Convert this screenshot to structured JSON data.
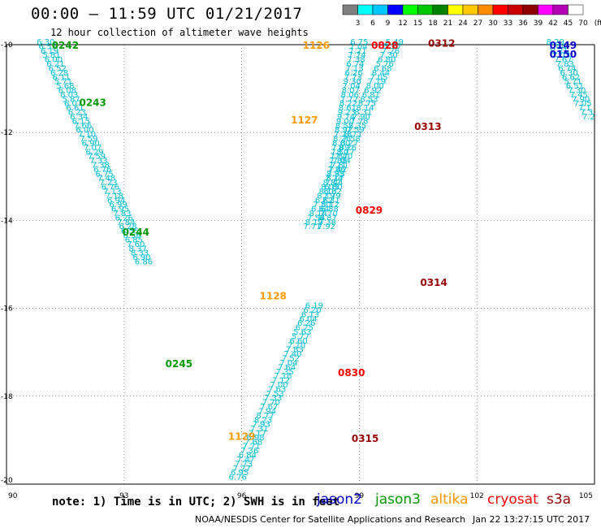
{
  "header": {
    "title": "00:00 – 11:59 UTC 01/21/2017",
    "subtitle": "12 hour collection of altimeter wave heights"
  },
  "colorbar": {
    "ticks": [
      "3",
      "6",
      "9",
      "12",
      "15",
      "18",
      "21",
      "24",
      "27",
      "30",
      "33",
      "36",
      "39",
      "42",
      "45",
      "70",
      "(ft)"
    ],
    "colors": [
      "#7f7f7f",
      "#00ffff",
      "#00c8ff",
      "#0000ff",
      "#00ff00",
      "#00c800",
      "#008200",
      "#ffff00",
      "#ffc800",
      "#ff8c00",
      "#ff0000",
      "#c80000",
      "#8c0000",
      "#ff00ff",
      "#b400b4",
      "#ffffff"
    ]
  },
  "footer": {
    "note": "note: 1) Time is in UTC; 2) SWH is in feet",
    "credit": "NOAA/NESDIS Center for Satellite Applications and Research",
    "timestamp": "Jan 22 13:27:15 UTC 2017"
  },
  "legend": [
    {
      "name": "jason2",
      "color": "#0000cc"
    },
    {
      "name": "jason3",
      "color": "#009900"
    },
    {
      "name": "altika",
      "color": "#ff9900"
    },
    {
      "name": "cryosat",
      "color": "#ff0000"
    },
    {
      "name": "s3a",
      "color": "#990000"
    }
  ],
  "chart_data": {
    "type": "scatter",
    "xlim": [
      90,
      105
    ],
    "ylim": [
      -20,
      -10
    ],
    "xticks": [
      "90",
      "93",
      "96",
      "99",
      "102",
      "105"
    ],
    "yticks": [
      "-10",
      "-12",
      "-14",
      "-16",
      "-18",
      "-20"
    ],
    "grid": true,
    "point_color": "#00bcd4",
    "track_labels": [
      {
        "text": "0242",
        "x": 91.5,
        "y": -10.0,
        "sat": "jason3"
      },
      {
        "text": "0243",
        "x": 92.2,
        "y": -11.3,
        "sat": "jason3"
      },
      {
        "text": "0244",
        "x": 93.3,
        "y": -14.25,
        "sat": "jason3"
      },
      {
        "text": "0245",
        "x": 94.4,
        "y": -17.25,
        "sat": "jason3"
      },
      {
        "text": "1126",
        "x": 97.9,
        "y": -10.0,
        "sat": "altika"
      },
      {
        "text": "1127",
        "x": 97.6,
        "y": -11.7,
        "sat": "altika"
      },
      {
        "text": "1128",
        "x": 96.8,
        "y": -15.7,
        "sat": "altika"
      },
      {
        "text": "1129",
        "x": 96.0,
        "y": -18.9,
        "sat": "altika"
      },
      {
        "text": "0828",
        "x": 99.65,
        "y": -10.0,
        "sat": "cryosat"
      },
      {
        "text": "0829",
        "x": 99.25,
        "y": -13.75,
        "sat": "cryosat"
      },
      {
        "text": "0830",
        "x": 98.8,
        "y": -17.45,
        "sat": "cryosat"
      },
      {
        "text": "0312",
        "x": 101.1,
        "y": -9.95,
        "sat": "s3a"
      },
      {
        "text": "0313",
        "x": 100.75,
        "y": -11.85,
        "sat": "s3a"
      },
      {
        "text": "0314",
        "x": 100.9,
        "y": -15.4,
        "sat": "s3a"
      },
      {
        "text": "0315",
        "x": 99.15,
        "y": -18.95,
        "sat": "s3a"
      },
      {
        "text": "0149",
        "x": 104.2,
        "y": -10.0,
        "sat": "jason2"
      },
      {
        "text": "0150",
        "x": 104.2,
        "y": -10.2,
        "sat": "jason2"
      }
    ],
    "tracks": [
      {
        "name": "jason3 desc",
        "points": [
          [
            91.0,
            -10.0,
            "6.30"
          ],
          [
            91.05,
            -10.1,
            "6.55"
          ],
          [
            91.1,
            -10.2,
            "6.19"
          ],
          [
            91.15,
            -10.3,
            "5.81"
          ],
          [
            91.2,
            -10.4,
            "6.00"
          ],
          [
            91.25,
            -10.5,
            "6.21"
          ],
          [
            91.3,
            -10.6,
            "6.52"
          ],
          [
            91.35,
            -10.7,
            "6.28"
          ],
          [
            91.4,
            -10.8,
            "6.11"
          ],
          [
            91.45,
            -10.9,
            "5.71"
          ],
          [
            91.5,
            -11.0,
            "5.68"
          ],
          [
            91.55,
            -11.1,
            "6.08"
          ],
          [
            91.6,
            -11.2,
            "6.03"
          ],
          [
            91.65,
            -11.3,
            "5.87"
          ],
          [
            91.7,
            -11.4,
            "6.07"
          ],
          [
            91.75,
            -11.5,
            "6.61"
          ],
          [
            91.8,
            -11.6,
            "6.23"
          ],
          [
            91.85,
            -11.7,
            "6.34"
          ],
          [
            91.9,
            -11.8,
            "6.15"
          ],
          [
            91.95,
            -11.9,
            "7.66"
          ],
          [
            92.0,
            -12.0,
            "6.00"
          ],
          [
            92.05,
            -12.1,
            "7.10"
          ],
          [
            92.1,
            -12.2,
            "7.59"
          ],
          [
            92.15,
            -12.3,
            "6.90"
          ],
          [
            92.2,
            -12.4,
            "7.07"
          ],
          [
            92.25,
            -12.5,
            "6.29"
          ],
          [
            92.3,
            -12.6,
            "7.59"
          ],
          [
            92.35,
            -12.7,
            "7.33"
          ],
          [
            92.4,
            -12.8,
            "7.38"
          ],
          [
            92.45,
            -12.9,
            "6.76"
          ],
          [
            92.5,
            -13.0,
            "6.75"
          ],
          [
            92.55,
            -13.1,
            "7.48"
          ],
          [
            92.6,
            -13.2,
            "7.23"
          ],
          [
            92.65,
            -13.3,
            "6.76"
          ],
          [
            92.7,
            -13.4,
            "7.13"
          ],
          [
            92.75,
            -13.5,
            "7.18"
          ],
          [
            92.8,
            -13.6,
            "6.94"
          ],
          [
            92.85,
            -13.7,
            "6.99"
          ],
          [
            92.9,
            -13.8,
            "6.95"
          ],
          [
            92.95,
            -13.9,
            "7.83"
          ],
          [
            93.0,
            -14.0,
            "6.26"
          ],
          [
            93.05,
            -14.1,
            "7.84"
          ],
          [
            93.1,
            -14.2,
            "6.28"
          ],
          [
            93.15,
            -14.3,
            "6.55"
          ],
          [
            93.2,
            -14.4,
            "6.56"
          ],
          [
            93.25,
            -14.5,
            "6.85"
          ],
          [
            93.3,
            -14.6,
            "7.60"
          ],
          [
            93.35,
            -14.7,
            "8.37"
          ],
          [
            93.4,
            -14.8,
            "8.33"
          ],
          [
            93.45,
            -14.9,
            "6.90"
          ],
          [
            93.5,
            -15.0,
            "6.86"
          ]
        ]
      },
      {
        "name": "altika asc",
        "points": [
          [
            95.9,
            -19.9,
            "6.76"
          ],
          [
            95.95,
            -19.8,
            "6.95"
          ],
          [
            96.0,
            -19.7,
            "7.27"
          ],
          [
            96.05,
            -19.6,
            "7.73"
          ],
          [
            96.1,
            -19.5,
            "7.47"
          ],
          [
            96.15,
            -19.4,
            "6.84"
          ],
          [
            96.2,
            -19.3,
            "7.36"
          ],
          [
            96.25,
            -19.2,
            "7.71"
          ],
          [
            96.3,
            -19.1,
            "7.68"
          ],
          [
            96.35,
            -19.0,
            "6.98"
          ],
          [
            96.4,
            -18.9,
            "7.17"
          ],
          [
            96.45,
            -18.8,
            "7.31"
          ],
          [
            96.5,
            -18.7,
            "7.93"
          ],
          [
            96.55,
            -18.6,
            "8.23"
          ],
          [
            96.6,
            -18.5,
            "8.77"
          ],
          [
            96.65,
            -18.4,
            "7.94"
          ],
          [
            96.7,
            -18.3,
            "7.67"
          ],
          [
            96.75,
            -18.2,
            "7.70"
          ],
          [
            96.8,
            -18.1,
            "7.33"
          ],
          [
            96.85,
            -18.0,
            "7.53"
          ],
          [
            96.9,
            -17.9,
            "7.63"
          ],
          [
            96.95,
            -17.8,
            "7.00"
          ],
          [
            97.0,
            -17.7,
            "7.12"
          ],
          [
            97.05,
            -17.6,
            "7.16"
          ],
          [
            97.1,
            -17.5,
            "7.35"
          ],
          [
            97.15,
            -17.4,
            "7.64"
          ],
          [
            97.2,
            -17.3,
            "7.04"
          ],
          [
            97.25,
            -17.2,
            "7.52"
          ],
          [
            97.3,
            -17.1,
            "7.40"
          ],
          [
            97.35,
            -17.0,
            "7.83"
          ],
          [
            97.4,
            -16.9,
            "7.10"
          ],
          [
            97.45,
            -16.8,
            "6.60"
          ],
          [
            97.5,
            -16.7,
            "5.77"
          ],
          [
            97.55,
            -16.6,
            "5.63"
          ],
          [
            97.6,
            -16.5,
            "6.25"
          ],
          [
            97.65,
            -16.4,
            "6.26"
          ],
          [
            97.7,
            -16.3,
            "6.04"
          ],
          [
            97.75,
            -16.2,
            "6.13"
          ],
          [
            97.8,
            -16.1,
            "6.20"
          ],
          [
            97.85,
            -16.0,
            "6.19"
          ]
        ]
      },
      {
        "name": "cryosat",
        "points": [
          [
            99.0,
            -10.0,
            "6.75"
          ],
          [
            98.98,
            -10.1,
            "7.04"
          ],
          [
            98.96,
            -10.2,
            "7.21"
          ],
          [
            98.94,
            -10.3,
            "7.74"
          ],
          [
            98.92,
            -10.4,
            "7.38"
          ],
          [
            98.9,
            -10.5,
            "6.74"
          ],
          [
            98.88,
            -10.6,
            "7.13"
          ],
          [
            98.86,
            -10.7,
            "6.26"
          ],
          [
            98.84,
            -10.8,
            "7.73"
          ],
          [
            98.82,
            -10.9,
            "9.30"
          ],
          [
            98.8,
            -11.0,
            "7.04"
          ],
          [
            98.78,
            -11.1,
            "8.07"
          ],
          [
            98.76,
            -11.2,
            "8.06"
          ],
          [
            98.74,
            -11.3,
            "7.72"
          ],
          [
            98.72,
            -11.4,
            "8.22"
          ],
          [
            98.7,
            -11.5,
            "8.61"
          ],
          [
            98.68,
            -11.6,
            "9.23"
          ],
          [
            98.66,
            -11.7,
            "9.74"
          ],
          [
            98.64,
            -11.8,
            "9.00"
          ],
          [
            98.62,
            -11.9,
            "8.52"
          ],
          [
            98.6,
            -12.0,
            "8.92"
          ],
          [
            98.58,
            -12.1,
            "7.78"
          ],
          [
            98.56,
            -12.2,
            "8.26"
          ],
          [
            98.54,
            -12.3,
            "8.00"
          ],
          [
            98.52,
            -12.4,
            "7.89"
          ],
          [
            98.5,
            -12.5,
            "7.50"
          ],
          [
            98.48,
            -12.6,
            "7.87"
          ],
          [
            98.46,
            -12.7,
            "7.88"
          ],
          [
            98.44,
            -12.8,
            "7.21"
          ],
          [
            98.42,
            -12.9,
            "7.86"
          ],
          [
            98.4,
            -13.0,
            "7.33"
          ],
          [
            98.38,
            -13.1,
            "8.17"
          ],
          [
            98.36,
            -13.2,
            "7.44"
          ],
          [
            98.34,
            -13.3,
            "6.80"
          ],
          [
            98.32,
            -13.4,
            "6.62"
          ],
          [
            98.3,
            -13.5,
            "7.79"
          ],
          [
            98.28,
            -13.6,
            "7.31"
          ],
          [
            98.26,
            -13.7,
            "8.12"
          ],
          [
            98.24,
            -13.8,
            "6.88"
          ],
          [
            98.22,
            -13.9,
            "7.70"
          ],
          [
            98.2,
            -14.0,
            "6.87"
          ],
          [
            98.18,
            -14.1,
            "7.38"
          ],
          [
            98.16,
            -14.2,
            "7.92"
          ]
        ]
      },
      {
        "name": "s3a",
        "points": [
          [
            99.9,
            -10.0,
            "5.49"
          ],
          [
            99.85,
            -10.1,
            "5.77"
          ],
          [
            99.8,
            -10.2,
            "7.26"
          ],
          [
            99.75,
            -10.3,
            "7.30"
          ],
          [
            99.7,
            -10.4,
            "6.80"
          ],
          [
            99.65,
            -10.5,
            "5.76"
          ],
          [
            99.6,
            -10.6,
            "6.68"
          ],
          [
            99.55,
            -10.7,
            "8.44"
          ],
          [
            99.5,
            -10.8,
            "7.05"
          ],
          [
            99.45,
            -10.9,
            "7.19"
          ],
          [
            99.4,
            -11.0,
            "8.00"
          ],
          [
            99.35,
            -11.1,
            "6.92"
          ],
          [
            99.3,
            -11.2,
            "6.81"
          ],
          [
            99.25,
            -11.3,
            "8.53"
          ],
          [
            99.2,
            -11.4,
            "8.75"
          ],
          [
            99.15,
            -11.5,
            "8.14"
          ],
          [
            99.1,
            -11.6,
            "8.31"
          ],
          [
            99.05,
            -11.7,
            "7.90"
          ],
          [
            99.0,
            -11.8,
            "7.78"
          ],
          [
            98.95,
            -11.9,
            "8.35"
          ],
          [
            98.9,
            -12.0,
            "7.59"
          ],
          [
            98.85,
            -12.1,
            "8.71"
          ],
          [
            98.8,
            -12.2,
            "7.58"
          ],
          [
            98.75,
            -12.3,
            "8.27"
          ],
          [
            98.7,
            -12.4,
            "8.26"
          ],
          [
            98.65,
            -12.5,
            "8.17"
          ],
          [
            98.6,
            -12.6,
            "7.40"
          ],
          [
            98.55,
            -12.7,
            "7.04"
          ],
          [
            98.5,
            -12.8,
            "7.81"
          ],
          [
            98.45,
            -12.9,
            "7.42"
          ],
          [
            98.4,
            -13.0,
            "8.95"
          ],
          [
            98.35,
            -13.1,
            "7.74"
          ],
          [
            98.3,
            -13.2,
            "8.82"
          ],
          [
            98.25,
            -13.3,
            "8.05"
          ],
          [
            98.2,
            -13.4,
            "8.13"
          ],
          [
            98.15,
            -13.5,
            "8.19"
          ],
          [
            98.1,
            -13.6,
            "6.62"
          ],
          [
            98.05,
            -13.7,
            "7.50"
          ],
          [
            98.0,
            -13.8,
            "6.64"
          ],
          [
            97.95,
            -13.9,
            "8.14"
          ],
          [
            97.9,
            -14.0,
            "7.54"
          ],
          [
            97.85,
            -14.1,
            "8.19"
          ],
          [
            97.8,
            -14.2,
            "7.71"
          ]
        ]
      },
      {
        "name": "jason2 desc",
        "points": [
          [
            104.0,
            -10.0,
            "8.29"
          ],
          [
            104.05,
            -10.1,
            "7.44"
          ],
          [
            104.1,
            -10.2,
            "8.21"
          ],
          [
            104.15,
            -10.3,
            "7.03"
          ],
          [
            104.2,
            -10.4,
            "7.67"
          ],
          [
            104.25,
            -10.5,
            "7.83"
          ],
          [
            104.3,
            -10.6,
            "6.74"
          ],
          [
            104.35,
            -10.7,
            "6.30"
          ],
          [
            104.4,
            -10.8,
            "6.62"
          ],
          [
            104.45,
            -10.9,
            "5.71"
          ],
          [
            104.5,
            -11.0,
            "6.51"
          ],
          [
            104.55,
            -11.1,
            "7.30"
          ],
          [
            104.6,
            -11.2,
            "7.45"
          ],
          [
            104.65,
            -11.3,
            "7.90"
          ],
          [
            104.7,
            -11.4,
            "7.05"
          ],
          [
            104.75,
            -11.5,
            "7.1"
          ],
          [
            104.8,
            -11.6,
            "7.3"
          ],
          [
            104.85,
            -11.7,
            "7.2"
          ]
        ]
      }
    ]
  }
}
